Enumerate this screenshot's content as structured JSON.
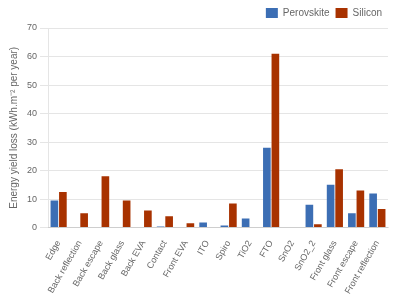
{
  "chart_data": {
    "type": "bar",
    "categories": [
      "Edge",
      "Back reflection",
      "Back escape",
      "Back glass",
      "Back EVA",
      "Contact",
      "Front EVA",
      "ITO",
      "Spiro",
      "TiO2",
      "FTO",
      "SnO2",
      "SnO2_2",
      "Front glass",
      "Front escape",
      "Front reflection"
    ],
    "series": [
      {
        "name": "Perovskite",
        "color": "#3c6eb4",
        "values": [
          9.5,
          0,
          0,
          0,
          0,
          0.4,
          0,
          1.8,
          0.7,
          3.2,
          28,
          0,
          8.0,
          15.0,
          5.0,
          12.0
        ]
      },
      {
        "name": "Silicon",
        "color": "#a83200",
        "values": [
          12.5,
          5.0,
          18.0,
          9.5,
          6.0,
          4.0,
          1.5,
          0,
          8.5,
          0,
          61,
          0,
          1.2,
          20.5,
          13.0,
          6.5
        ]
      }
    ],
    "ylabel": "Energy yield loss (kWh.m⁻² per year)",
    "ylim": [
      0,
      70
    ],
    "yticks": [
      0,
      10,
      20,
      30,
      40,
      50,
      60,
      70
    ],
    "grid": true,
    "legend": "upper right"
  }
}
